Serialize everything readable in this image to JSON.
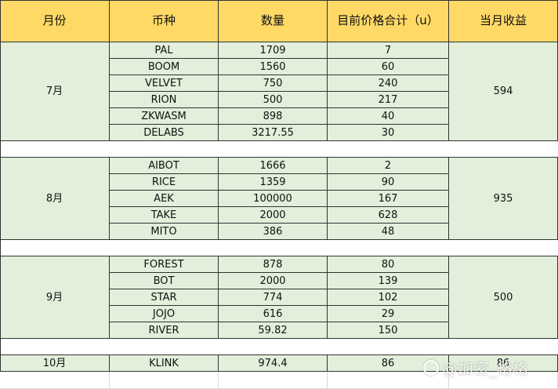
{
  "headers": [
    "月份",
    "币种",
    "数量",
    "目前价格合计（u）",
    "当月收益"
  ],
  "groups": [
    {
      "month": "7月",
      "profit": "594",
      "rows": [
        {
          "coin": "PAL",
          "qty": "1709",
          "price": "7"
        },
        {
          "coin": "BOOM",
          "qty": "1560",
          "price": "60"
        },
        {
          "coin": "VELVET",
          "qty": "750",
          "price": "240"
        },
        {
          "coin": "RION",
          "qty": "500",
          "price": "217"
        },
        {
          "coin": "ZKWASM",
          "qty": "898",
          "price": "40"
        },
        {
          "coin": "DELABS",
          "qty": "3217.55",
          "price": "30"
        }
      ]
    },
    {
      "month": "8月",
      "profit": "935",
      "rows": [
        {
          "coin": "AIBOT",
          "qty": "1666",
          "price": "2"
        },
        {
          "coin": "RICE",
          "qty": "1359",
          "price": "90"
        },
        {
          "coin": "AEK",
          "qty": "100000",
          "price": "167"
        },
        {
          "coin": "TAKE",
          "qty": "2000",
          "price": "628"
        },
        {
          "coin": "MITO",
          "qty": "386",
          "price": "48"
        }
      ]
    },
    {
      "month": "9月",
      "profit": "500",
      "rows": [
        {
          "coin": "FOREST",
          "qty": "878",
          "price": "80"
        },
        {
          "coin": "BOT",
          "qty": "2000",
          "price": "139"
        },
        {
          "coin": "STAR",
          "qty": "774",
          "price": "102"
        },
        {
          "coin": "JOJO",
          "qty": "616",
          "price": "29"
        },
        {
          "coin": "RIVER",
          "qty": "59.82",
          "price": "150"
        }
      ]
    },
    {
      "month": "10月",
      "profit": "86",
      "rows": [
        {
          "coin": "KLINK",
          "qty": "974.4",
          "price": "86"
        }
      ]
    }
  ],
  "watermark": "@加密_格格"
}
